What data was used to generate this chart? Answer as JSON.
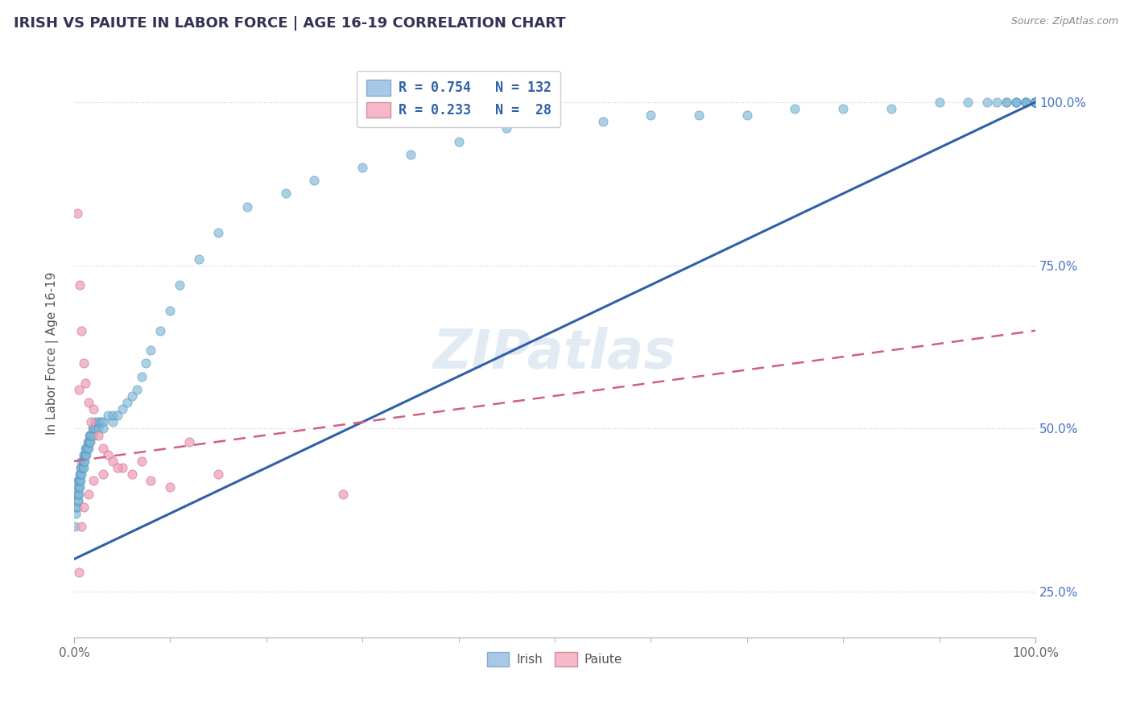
{
  "title": "IRISH VS PAIUTE IN LABOR FORCE | AGE 16-19 CORRELATION CHART",
  "source": "Source: ZipAtlas.com",
  "ylabel": "In Labor Force | Age 16-19",
  "xlim": [
    0,
    1
  ],
  "ylim": [
    0.18,
    1.05
  ],
  "xtick_positions": [
    0,
    1
  ],
  "xtick_labels": [
    "0.0%",
    "100.0%"
  ],
  "ytick_values": [
    0.25,
    0.5,
    0.75,
    1.0
  ],
  "ytick_labels": [
    "25.0%",
    "50.0%",
    "75.0%",
    "100.0%"
  ],
  "irish_color": "#7db8d8",
  "irish_edge_color": "#5090b8",
  "paiute_color": "#f0a0b8",
  "paiute_edge_color": "#c87090",
  "irish_line_color": "#3060a8",
  "paiute_line_color": "#d06080",
  "watermark": "ZIPatlas",
  "background_color": "#ffffff",
  "grid_color": "#cccccc",
  "title_fontsize": 13,
  "source_fontsize": 9,
  "legend_irish_label": "R = 0.754   N = 132",
  "legend_paiute_label": "R = 0.233   N =  28",
  "legend_text_color": "#3060a8",
  "bottom_legend_irish": "Irish",
  "bottom_legend_paiute": "Paiute",
  "irish_scatter_x": [
    0.001,
    0.002,
    0.002,
    0.003,
    0.003,
    0.003,
    0.004,
    0.004,
    0.004,
    0.004,
    0.005,
    0.005,
    0.005,
    0.006,
    0.006,
    0.006,
    0.007,
    0.007,
    0.007,
    0.008,
    0.008,
    0.008,
    0.009,
    0.009,
    0.01,
    0.01,
    0.01,
    0.011,
    0.011,
    0.012,
    0.012,
    0.013,
    0.013,
    0.014,
    0.014,
    0.015,
    0.015,
    0.016,
    0.016,
    0.017,
    0.017,
    0.018,
    0.019,
    0.02,
    0.02,
    0.022,
    0.022,
    0.025,
    0.025,
    0.028,
    0.03,
    0.03,
    0.035,
    0.04,
    0.04,
    0.045,
    0.05,
    0.055,
    0.06,
    0.065,
    0.07,
    0.075,
    0.08,
    0.09,
    0.1,
    0.11,
    0.13,
    0.15,
    0.18,
    0.22,
    0.25,
    0.3,
    0.35,
    0.4,
    0.45,
    0.5,
    0.55,
    0.6,
    0.65,
    0.7,
    0.75,
    0.8,
    0.85,
    0.9,
    0.93,
    0.95,
    0.96,
    0.97,
    0.97,
    0.98,
    0.98,
    0.98,
    0.99,
    0.99,
    0.99,
    0.99,
    1.0,
    1.0,
    1.0,
    1.0,
    1.0,
    1.0,
    1.0,
    1.0,
    1.0,
    1.0,
    1.0,
    1.0,
    1.0,
    1.0,
    1.0,
    1.0,
    1.0,
    1.0,
    1.0,
    1.0,
    1.0,
    1.0,
    1.0,
    1.0,
    1.0,
    1.0,
    1.0,
    1.0,
    1.0,
    1.0,
    1.0,
    1.0,
    1.0,
    1.0,
    1.0,
    1.0
  ],
  "irish_scatter_y": [
    0.35,
    0.37,
    0.38,
    0.38,
    0.39,
    0.4,
    0.39,
    0.4,
    0.41,
    0.42,
    0.4,
    0.41,
    0.42,
    0.41,
    0.42,
    0.43,
    0.42,
    0.43,
    0.44,
    0.43,
    0.44,
    0.45,
    0.44,
    0.45,
    0.44,
    0.45,
    0.46,
    0.45,
    0.46,
    0.46,
    0.47,
    0.46,
    0.47,
    0.47,
    0.48,
    0.47,
    0.48,
    0.48,
    0.49,
    0.48,
    0.49,
    0.49,
    0.5,
    0.49,
    0.5,
    0.5,
    0.51,
    0.51,
    0.5,
    0.51,
    0.5,
    0.51,
    0.52,
    0.51,
    0.52,
    0.52,
    0.53,
    0.54,
    0.55,
    0.56,
    0.58,
    0.6,
    0.62,
    0.65,
    0.68,
    0.72,
    0.76,
    0.8,
    0.84,
    0.86,
    0.88,
    0.9,
    0.92,
    0.94,
    0.96,
    0.97,
    0.97,
    0.98,
    0.98,
    0.98,
    0.99,
    0.99,
    0.99,
    1.0,
    1.0,
    1.0,
    1.0,
    1.0,
    1.0,
    1.0,
    1.0,
    1.0,
    1.0,
    1.0,
    1.0,
    1.0,
    1.0,
    1.0,
    1.0,
    1.0,
    1.0,
    1.0,
    1.0,
    1.0,
    1.0,
    1.0,
    1.0,
    1.0,
    1.0,
    1.0,
    1.0,
    1.0,
    1.0,
    1.0,
    1.0,
    1.0,
    1.0,
    1.0,
    1.0,
    1.0,
    1.0,
    1.0,
    1.0,
    1.0,
    1.0,
    1.0,
    1.0,
    1.0,
    1.0,
    1.0,
    1.0,
    1.0
  ],
  "paiute_scatter_x": [
    0.003,
    0.005,
    0.006,
    0.008,
    0.01,
    0.012,
    0.015,
    0.018,
    0.02,
    0.025,
    0.03,
    0.035,
    0.04,
    0.05,
    0.06,
    0.08,
    0.1,
    0.15,
    0.005,
    0.008,
    0.01,
    0.015,
    0.02,
    0.03,
    0.045,
    0.07,
    0.12,
    0.28
  ],
  "paiute_scatter_y": [
    0.83,
    0.56,
    0.72,
    0.65,
    0.6,
    0.57,
    0.54,
    0.51,
    0.53,
    0.49,
    0.47,
    0.46,
    0.45,
    0.44,
    0.43,
    0.42,
    0.41,
    0.43,
    0.28,
    0.35,
    0.38,
    0.4,
    0.42,
    0.43,
    0.44,
    0.45,
    0.48,
    0.4
  ],
  "irish_line_x0": 0.0,
  "irish_line_y0": 0.3,
  "irish_line_x1": 1.0,
  "irish_line_y1": 1.0,
  "paiute_line_x0": 0.0,
  "paiute_line_y0": 0.45,
  "paiute_line_x1": 1.0,
  "paiute_line_y1": 0.65
}
